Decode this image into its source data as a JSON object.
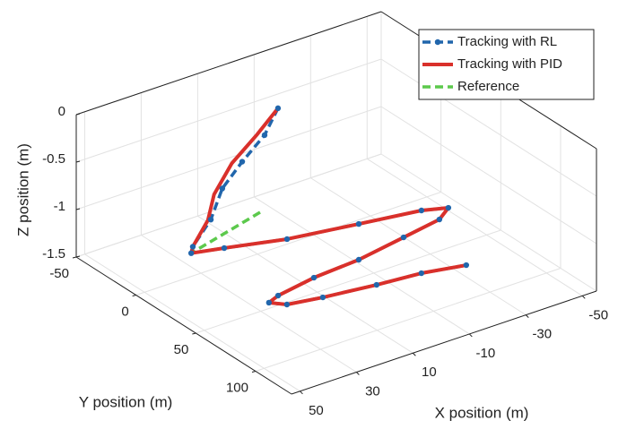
{
  "chart_data": {
    "type": "line3d",
    "xlabel": "X position (m)",
    "ylabel": "Y position (m)",
    "zlabel": "Z position (m)",
    "xlim": [
      -55,
      53
    ],
    "ylim": [
      -50,
      130
    ],
    "zlim": [
      -1.5,
      0
    ],
    "xticks": [
      -50,
      -30,
      -10,
      10,
      30,
      50
    ],
    "yticks": [
      -50,
      0,
      50,
      100
    ],
    "zticks": [
      -1.5,
      -1,
      -0.5,
      0
    ],
    "grid": true,
    "legend": "upper right",
    "series": [
      {
        "name": "Tracking with RL",
        "color": "#2166ac",
        "style": "dash-marker",
        "x": [
          4,
          6.5,
          11,
          15,
          18.6,
          24,
          25,
          15.5,
          -2.3,
          -24.4,
          -43.8,
          -51,
          -44.7,
          -29.9,
          -11.4,
          5.5,
          20.3,
          25,
          21.5,
          10.6,
          -6.4,
          -21,
          -34.3
        ],
        "y": [
          3,
          -2.3,
          -10.4,
          -17.6,
          -18.7,
          -21,
          -20,
          -14.8,
          -4.3,
          3.5,
          10.1,
          15.6,
          23,
          28,
          34.2,
          36.6,
          41.6,
          45,
          51.8,
          56.1,
          60.9,
          63.9,
          70
        ],
        "z": [
          0,
          -0.3,
          -0.6,
          -0.9,
          -1.2,
          -1.45,
          -1.5,
          -1.5,
          -1.5,
          -1.5,
          -1.5,
          -1.5,
          -1.5,
          -1.5,
          -1.5,
          -1.5,
          -1.5,
          -1.5,
          -1.5,
          -1.5,
          -1.5,
          -1.5,
          -1.5
        ]
      },
      {
        "name": "Tracking with PID",
        "color": "#d9302b",
        "style": "solid",
        "x": [
          4,
          8,
          14,
          19,
          19.5,
          24,
          25,
          15.5,
          -2.3,
          -24.4,
          -43.8,
          -51,
          -44.7,
          -29.9,
          -11.4,
          5.5,
          20.3,
          25,
          21.5,
          10.6,
          -6.4,
          -21,
          -34.3
        ],
        "y": [
          3,
          -5,
          -12,
          -15,
          -19,
          -21,
          -20,
          -14.8,
          -4.3,
          3.5,
          10.1,
          15.6,
          23,
          28,
          34.2,
          36.6,
          41.6,
          45,
          51.8,
          56.1,
          60.9,
          63.9,
          70
        ],
        "z": [
          0,
          -0.3,
          -0.6,
          -0.9,
          -1.2,
          -1.45,
          -1.5,
          -1.5,
          -1.5,
          -1.5,
          -1.5,
          -1.5,
          -1.5,
          -1.5,
          -1.5,
          -1.5,
          -1.5,
          -1.5,
          -1.5,
          -1.5,
          -1.5,
          -1.5,
          -1.5
        ]
      },
      {
        "name": "Reference",
        "color": "#5cc94c",
        "style": "dash",
        "x": [
          -5.8,
          25,
          15.5,
          -2.3,
          -24.4,
          -43.8,
          -51,
          -44.7,
          -29.9,
          -11.4,
          5.5,
          20.3,
          25,
          21.5,
          10.6,
          -6.4,
          -21,
          -34.3
        ],
        "y": [
          -35.1,
          -20,
          -14.8,
          -4.3,
          3.5,
          10.1,
          15.6,
          23,
          28,
          34.2,
          36.6,
          41.6,
          45,
          51.8,
          56.1,
          60.9,
          63.9,
          70
        ],
        "z": [
          -1.5,
          -1.5,
          -1.5,
          -1.5,
          -1.5,
          -1.5,
          -1.5,
          -1.5,
          -1.5,
          -1.5,
          -1.5,
          -1.5,
          -1.5,
          -1.5,
          -1.5,
          -1.5,
          -1.5,
          -1.5
        ]
      }
    ]
  }
}
